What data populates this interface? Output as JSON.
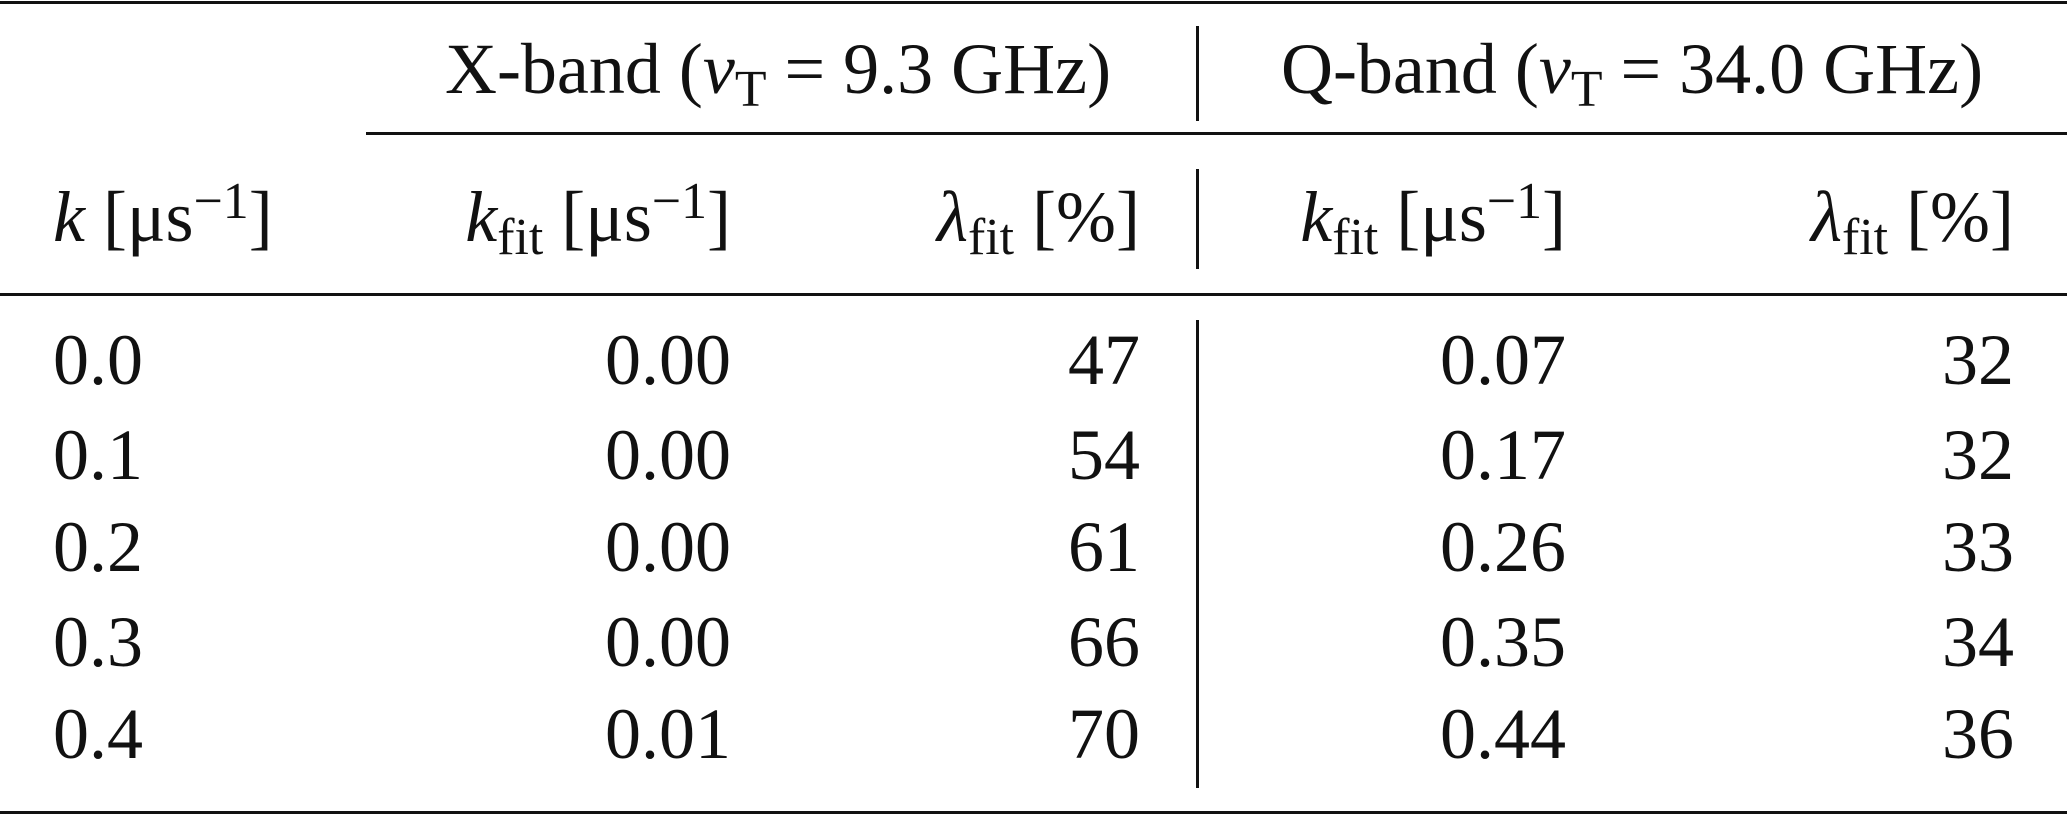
{
  "table": {
    "group_headers": [
      {
        "before": "X-band (",
        "symbol": "ν",
        "sub": "T",
        "after": " = 9.3 GHz)"
      },
      {
        "before": "Q-band (",
        "symbol": "ν",
        "sub": "T",
        "after": " = 34.0 GHz)"
      }
    ],
    "columns": [
      {
        "symbol": "k",
        "unit": " [μs",
        "sup": "−1",
        "close": "]"
      },
      {
        "symbol": "k",
        "sub": "fit",
        "unit": " [μs",
        "sup": "−1",
        "close": "]"
      },
      {
        "symbol": "λ",
        "sub": "fit",
        "unit": " [%]"
      },
      {
        "symbol": "k",
        "sub": "fit",
        "unit": " [μs",
        "sup": "−1",
        "close": "]"
      },
      {
        "symbol": "λ",
        "sub": "fit",
        "unit": " [%]"
      }
    ],
    "rows": [
      [
        "0.0",
        "0.00",
        "47",
        "0.07",
        "32"
      ],
      [
        "0.1",
        "0.00",
        "54",
        "0.17",
        "32"
      ],
      [
        "0.2",
        "0.00",
        "61",
        "0.26",
        "33"
      ],
      [
        "0.3",
        "0.00",
        "66",
        "0.35",
        "34"
      ],
      [
        "0.4",
        "0.01",
        "70",
        "0.44",
        "36"
      ]
    ]
  }
}
